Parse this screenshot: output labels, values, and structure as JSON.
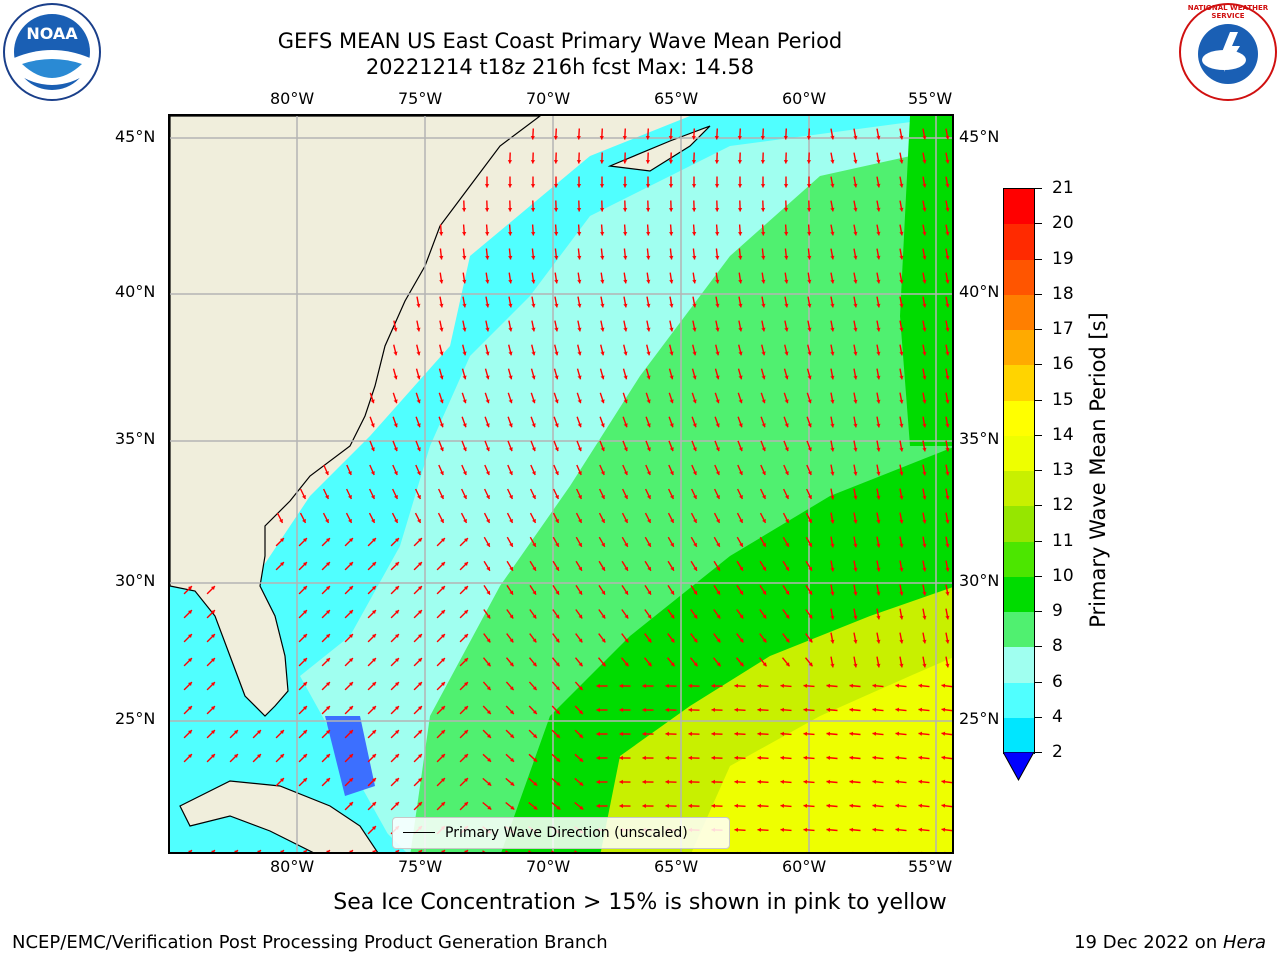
{
  "header": {
    "title_line1": "GEFS MEAN US East Coast Primary Wave Mean Period",
    "title_line2": "20221214 t18z 216h fcst   Max: 14.58"
  },
  "logos": {
    "left": "NOAA",
    "right": "NATIONAL WEATHER SERVICE"
  },
  "map": {
    "lon_labels": [
      "80°W",
      "75°W",
      "70°W",
      "65°W",
      "60°W",
      "55°W"
    ],
    "lat_labels": [
      "45°N",
      "40°N",
      "35°N",
      "30°N",
      "25°N"
    ],
    "legend_label": "Primary Wave Direction (unscaled)"
  },
  "colorbar": {
    "label": "Primary Wave Mean Period [s]",
    "ticks": [
      "21",
      "20",
      "19",
      "18",
      "17",
      "16",
      "15",
      "14",
      "13",
      "12",
      "11",
      "10",
      "9",
      "8",
      "6",
      "4",
      "2"
    ],
    "colors": [
      "#ff0000",
      "#ff2a00",
      "#ff5500",
      "#ff7f00",
      "#ffaa00",
      "#ffd400",
      "#ffff00",
      "#eeff00",
      "#c8f000",
      "#96e600",
      "#4ce600",
      "#00dc00",
      "#50f070",
      "#a0fff0",
      "#50ffff",
      "#00e6ff",
      "#0078ff"
    ],
    "extend_color": "#0000ff"
  },
  "subnote": "Sea Ice Concentration > 15% is shown in pink to yellow",
  "footer": {
    "left": "NCEP/EMC/Verification Post Processing Product Generation Branch",
    "right_prefix": "19 Dec 2022 on ",
    "right_host": "Hera"
  },
  "arrow_color": "#ff0000"
}
